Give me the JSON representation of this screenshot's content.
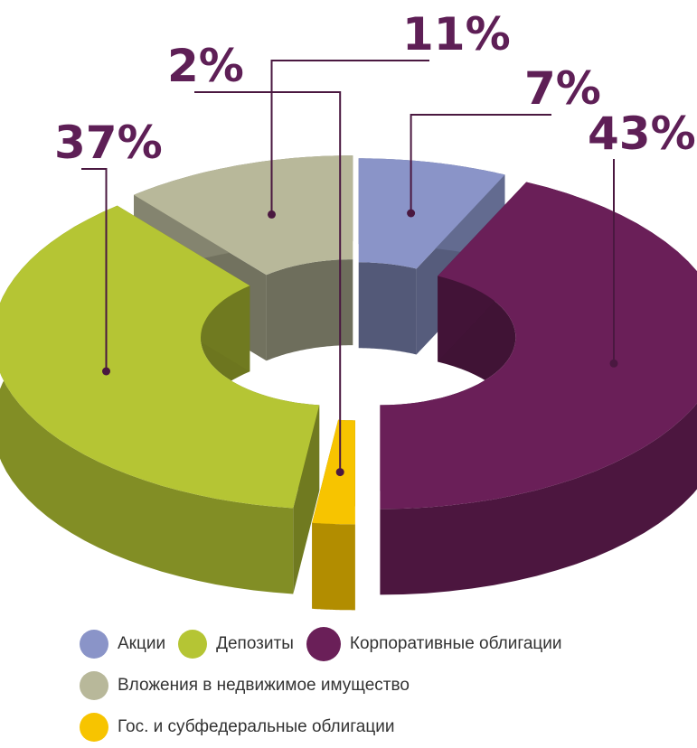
{
  "chart_data": {
    "type": "pie",
    "style": "3d-donut-exploded",
    "slices": [
      {
        "key": "aktsii",
        "name": "Акции",
        "value": 7,
        "label": "7%",
        "color": "#8a94c8"
      },
      {
        "key": "depozity",
        "name": "Депозиты",
        "value": 37,
        "label": "37%",
        "color": "#b5c534"
      },
      {
        "key": "korp",
        "name": "Корпоративные облигации",
        "value": 43,
        "label": "43%",
        "color": "#6a1f58"
      },
      {
        "key": "nedv",
        "name": "Вложения в недвижимое имущество",
        "value": 11,
        "label": "11%",
        "color": "#b8b89a"
      },
      {
        "key": "gos",
        "name": "Гос. и субфедеральные облигации",
        "value": 2,
        "label": "2%",
        "color": "#f7c400"
      }
    ],
    "legend_rows": [
      [
        "aktsii",
        "depozity",
        "korp"
      ],
      [
        "nedv"
      ],
      [
        "gos"
      ]
    ]
  }
}
